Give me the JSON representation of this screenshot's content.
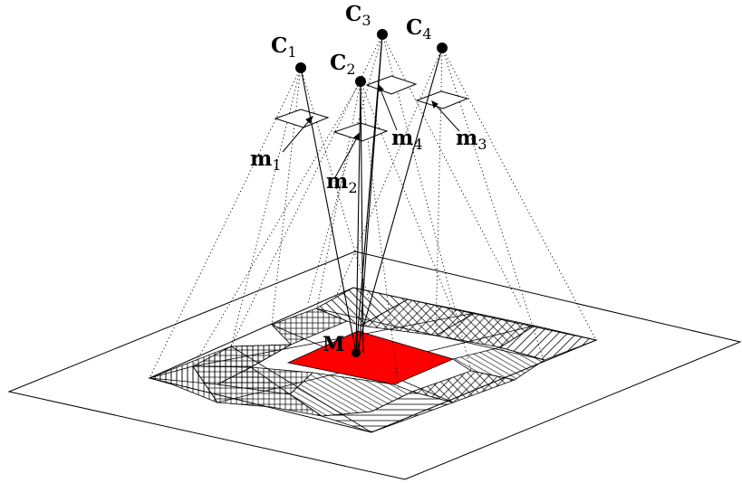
{
  "labels": {
    "cameras": [
      {
        "main": "C",
        "sub": "1"
      },
      {
        "main": "C",
        "sub": "2"
      },
      {
        "main": "C",
        "sub": "3"
      },
      {
        "main": "C",
        "sub": "4"
      }
    ],
    "projections": [
      {
        "main": "m",
        "sub": "1"
      },
      {
        "main": "m",
        "sub": "2"
      },
      {
        "main": "m",
        "sub": "3"
      },
      {
        "main": "m",
        "sub": "4"
      }
    ],
    "point": "M"
  },
  "colors": {
    "highlight": "#ff0000",
    "stroke": "#000000"
  }
}
